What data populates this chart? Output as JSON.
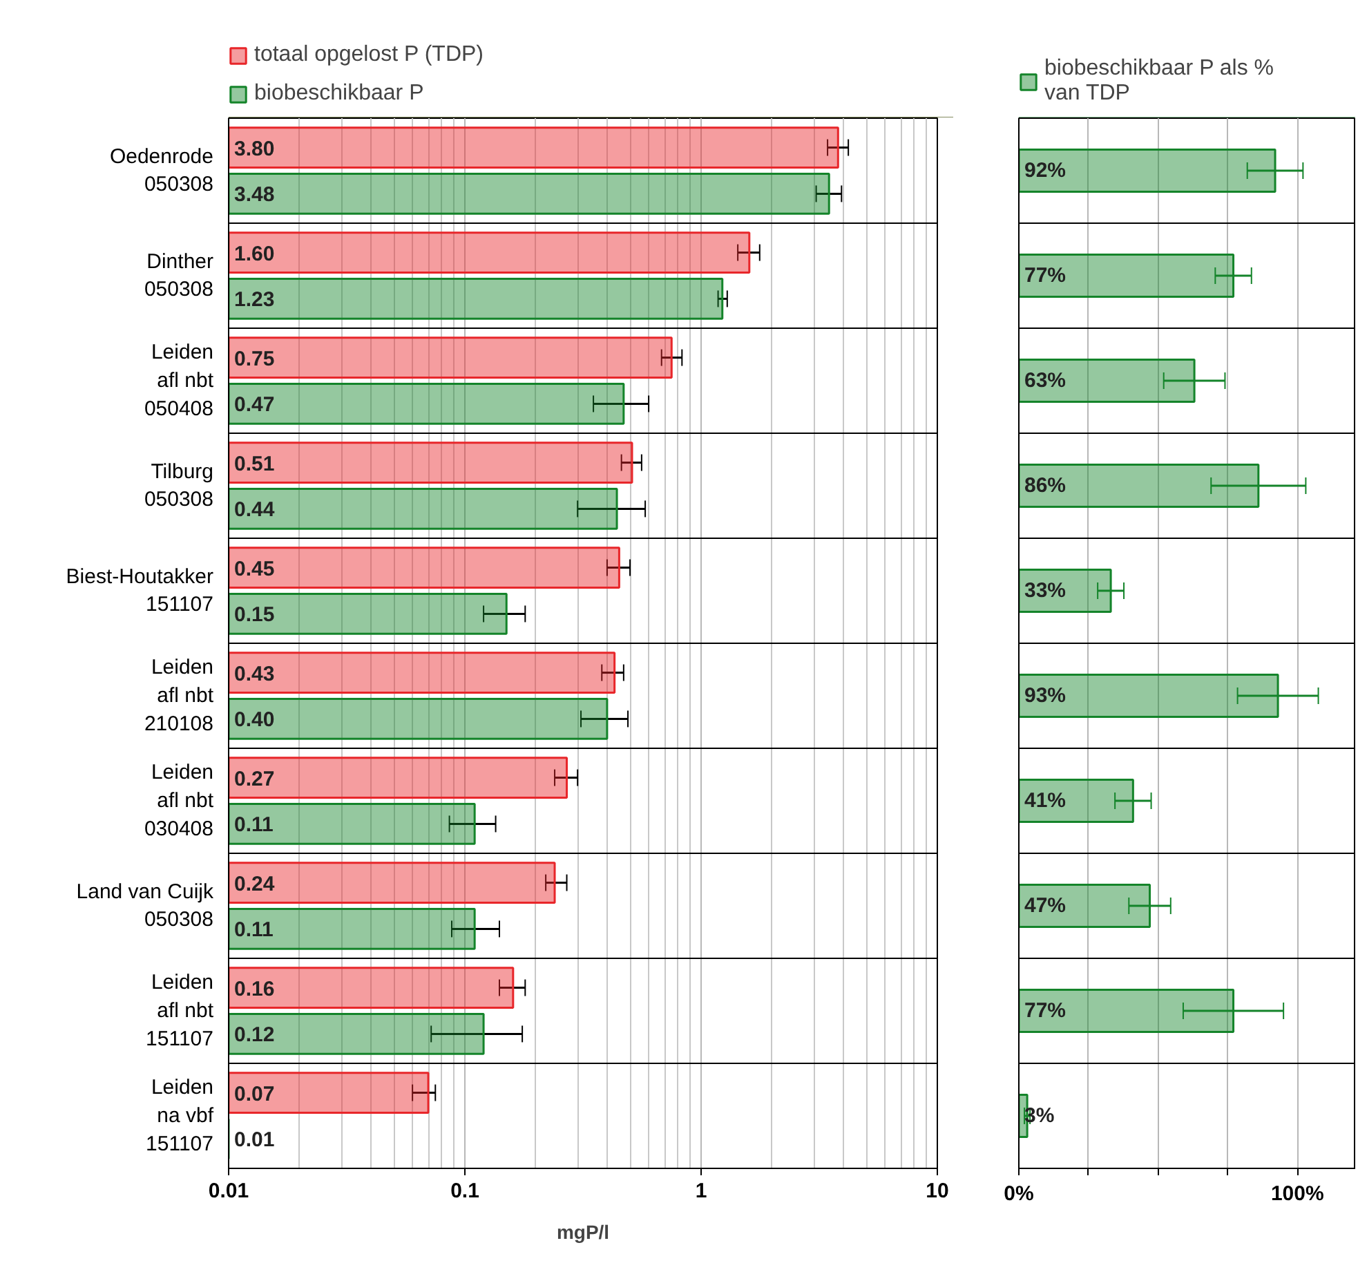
{
  "chart_data": [
    {
      "type": "bar",
      "orientation": "horizontal",
      "log": "x",
      "grid": "x",
      "legend": "top left",
      "xlabel": "mgP/l",
      "categories": [
        "Oedenrode\n050308",
        "Dinther\n050308",
        "Leiden\nafl nbt\n050408",
        "Tilburg\n050308",
        "Biest-Houtakker\n151107",
        "Leiden\nafl nbt\n210108",
        "Leiden\nafl nbt\n030408",
        "Land van Cuijk\n050308",
        "Leiden\nafl nbt\n151107",
        "Leiden\nna vbf\n151107"
      ],
      "xlim": [
        0.01,
        10
      ],
      "xticks": [
        0.01,
        0.1,
        1,
        10
      ],
      "series": [
        {
          "name": "totaal opgelost P (TDP)",
          "color": "#e8262a",
          "values": [
            3.8,
            1.6,
            0.75,
            0.51,
            0.45,
            0.43,
            0.27,
            0.24,
            0.16,
            0.07
          ],
          "value_labels": [
            "3.80",
            "1.60",
            "0.75",
            "0.51",
            "0.45",
            "0.43",
            "0.27",
            "0.24",
            "0.16",
            "0.07"
          ],
          "errors": [
            [
              3.43,
              4.2
            ],
            [
              1.43,
              1.77
            ],
            [
              0.68,
              0.83
            ],
            [
              0.46,
              0.56
            ],
            [
              0.4,
              0.5
            ],
            [
              0.38,
              0.47
            ],
            [
              0.24,
              0.3
            ],
            [
              0.22,
              0.27
            ],
            [
              0.14,
              0.18
            ],
            [
              0.06,
              0.075
            ]
          ]
        },
        {
          "name": "biobeschikbaar P",
          "color": "#14842a",
          "values": [
            3.48,
            1.23,
            0.47,
            0.44,
            0.15,
            0.4,
            0.11,
            0.11,
            0.12,
            0.01
          ],
          "value_labels": [
            "3.48",
            "1.23",
            "0.47",
            "0.44",
            "0.15",
            "0.40",
            "0.11",
            "0.11",
            "0.12",
            "0.01"
          ],
          "errors": [
            [
              3.07,
              3.93
            ],
            [
              1.18,
              1.29
            ],
            [
              0.35,
              0.6
            ],
            [
              0.3,
              0.58
            ],
            [
              0.12,
              0.18
            ],
            [
              0.31,
              0.49
            ],
            [
              0.086,
              0.135
            ],
            [
              0.088,
              0.14
            ],
            [
              0.072,
              0.175
            ],
            null
          ]
        }
      ]
    },
    {
      "type": "bar",
      "orientation": "horizontal",
      "grid": "x",
      "legend": "top left",
      "categories": [
        null,
        null,
        null,
        null,
        null,
        null,
        null,
        null,
        null,
        null
      ],
      "xlim": [
        0,
        121
      ],
      "xticks": [
        {
          "value": 0,
          "label": "0%"
        },
        {
          "value": 25,
          "label": null
        },
        {
          "value": 50,
          "label": null
        },
        {
          "value": 75,
          "label": null
        },
        {
          "value": 100,
          "label": "100%"
        }
      ],
      "series": [
        {
          "name": "biobeschikbaar P als % van TDP",
          "color": "#14842a",
          "values": [
            92,
            77,
            63,
            86,
            33,
            93,
            41,
            47,
            77,
            3
          ],
          "value_labels": [
            "92%",
            "77%",
            "63%",
            "86%",
            "33%",
            "93%",
            "41%",
            "47%",
            "77%",
            "3%"
          ],
          "errors": [
            10,
            6.5,
            11,
            17,
            4.7,
            14.5,
            6.5,
            7.5,
            18,
            1
          ]
        }
      ]
    }
  ]
}
